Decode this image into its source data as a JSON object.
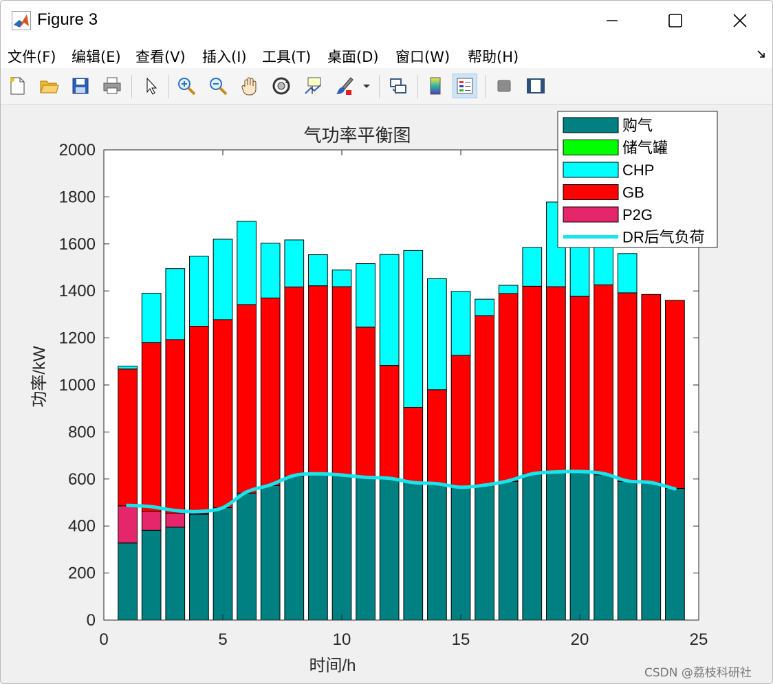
{
  "window": {
    "title": "Figure 3",
    "controls": {
      "minimize": "minimize",
      "maximize": "maximize",
      "close": "close"
    }
  },
  "menubar": {
    "items": [
      "文件(F)",
      "编辑(E)",
      "查看(V)",
      "插入(I)",
      "工具(T)",
      "桌面(D)",
      "窗口(W)",
      "帮助(H)"
    ]
  },
  "toolbar": {
    "tools": [
      "new-figure-icon",
      "open-file-icon",
      "save-icon",
      "print-icon",
      "pointer-icon",
      "zoom-in-icon",
      "zoom-out-icon",
      "pan-icon",
      "rotate-3d-icon",
      "data-cursor-icon",
      "brush-icon",
      "link-plot-icon",
      "colorbar-icon",
      "legend-icon",
      "hide-plot-tools-icon",
      "show-plot-tools-icon"
    ]
  },
  "colors": {
    "purchase": "#008080",
    "storage": "#00ff00",
    "chp": "#00ffff",
    "gb": "#ff0000",
    "p2g": "#e6266a",
    "dr_line": "#17e5ec"
  },
  "chart_data": {
    "type": "bar",
    "stacked": true,
    "title": "气功率平衡图",
    "xlabel": "时间/h",
    "ylabel": "功率/kW",
    "xlim": [
      0,
      25
    ],
    "ylim": [
      0,
      2000
    ],
    "xticks": [
      0,
      5,
      10,
      15,
      20,
      25
    ],
    "yticks": [
      0,
      200,
      400,
      600,
      800,
      1000,
      1200,
      1400,
      1600,
      1800,
      2000
    ],
    "grid": false,
    "legend_position": "top-right",
    "x": [
      1,
      2,
      3,
      4,
      5,
      6,
      7,
      8,
      9,
      10,
      11,
      12,
      13,
      14,
      15,
      16,
      17,
      18,
      19,
      20,
      21,
      22,
      23,
      24
    ],
    "series": [
      {
        "name": "购气",
        "key": "purchase",
        "values": [
          328,
          382,
          395,
          450,
          478,
          540,
          572,
          612,
          622,
          615,
          605,
          600,
          585,
          578,
          568,
          574,
          590,
          622,
          628,
          630,
          618,
          590,
          585,
          560
        ]
      },
      {
        "name": "储气罐",
        "key": "storage",
        "values": [
          0,
          0,
          0,
          0,
          0,
          0,
          0,
          0,
          0,
          0,
          0,
          0,
          0,
          0,
          0,
          0,
          0,
          0,
          0,
          0,
          0,
          0,
          0,
          0
        ]
      },
      {
        "name": "P2G",
        "key": "p2g",
        "values": [
          158,
          80,
          60,
          5,
          0,
          0,
          0,
          0,
          0,
          0,
          0,
          0,
          0,
          0,
          0,
          0,
          0,
          0,
          0,
          0,
          0,
          0,
          0,
          0
        ]
      },
      {
        "name": "GB",
        "key": "gb",
        "values": [
          582,
          718,
          738,
          795,
          800,
          802,
          798,
          805,
          800,
          803,
          641,
          483,
          320,
          402,
          558,
          721,
          799,
          798,
          790,
          747,
          808,
          802,
          800,
          800
        ]
      },
      {
        "name": "CHP",
        "key": "chp",
        "values": [
          12,
          210,
          302,
          298,
          342,
          354,
          233,
          200,
          132,
          71,
          270,
          472,
          667,
          472,
          272,
          70,
          35,
          165,
          360,
          225,
          224,
          167,
          0,
          0
        ]
      }
    ],
    "line": {
      "name": "DR后气负荷",
      "values": [
        488,
        482,
        466,
        462,
        478,
        545,
        575,
        615,
        622,
        617,
        607,
        603,
        585,
        580,
        565,
        574,
        592,
        622,
        630,
        632,
        623,
        592,
        585,
        558
      ]
    },
    "legend": [
      "购气",
      "储气罐",
      "CHP",
      "GB",
      "P2G",
      "DR后气负荷"
    ]
  },
  "watermark": "CSDN @荔枝科研社"
}
